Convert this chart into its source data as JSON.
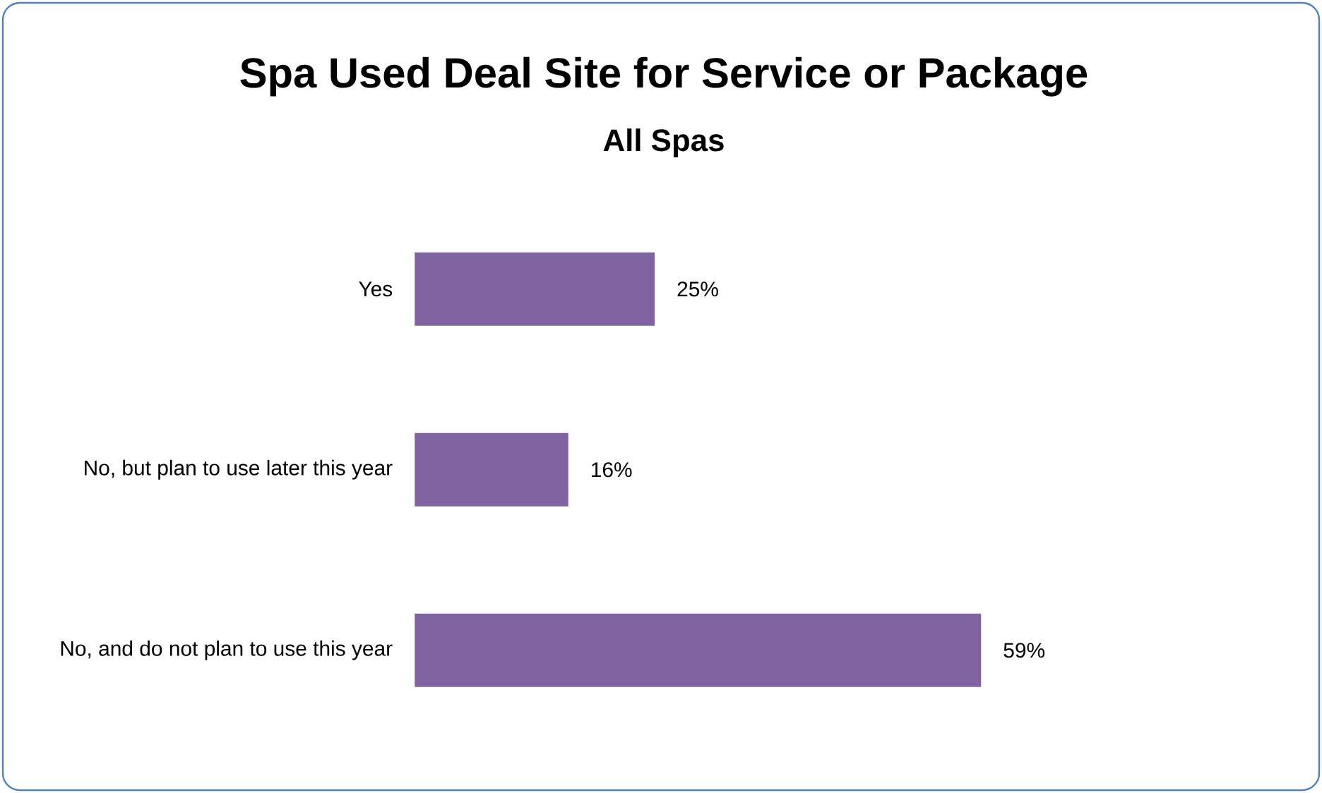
{
  "chart_data": {
    "type": "bar",
    "orientation": "horizontal",
    "title": "Spa Used Deal Site for Service or Package",
    "subtitle": "All Spas",
    "categories": [
      "Yes",
      "No, but plan to use later this year",
      "No, and do not plan to use this year"
    ],
    "values": [
      25,
      16,
      59
    ],
    "value_labels": [
      "25%",
      "16%",
      "59%"
    ],
    "color": "#8064a2"
  }
}
